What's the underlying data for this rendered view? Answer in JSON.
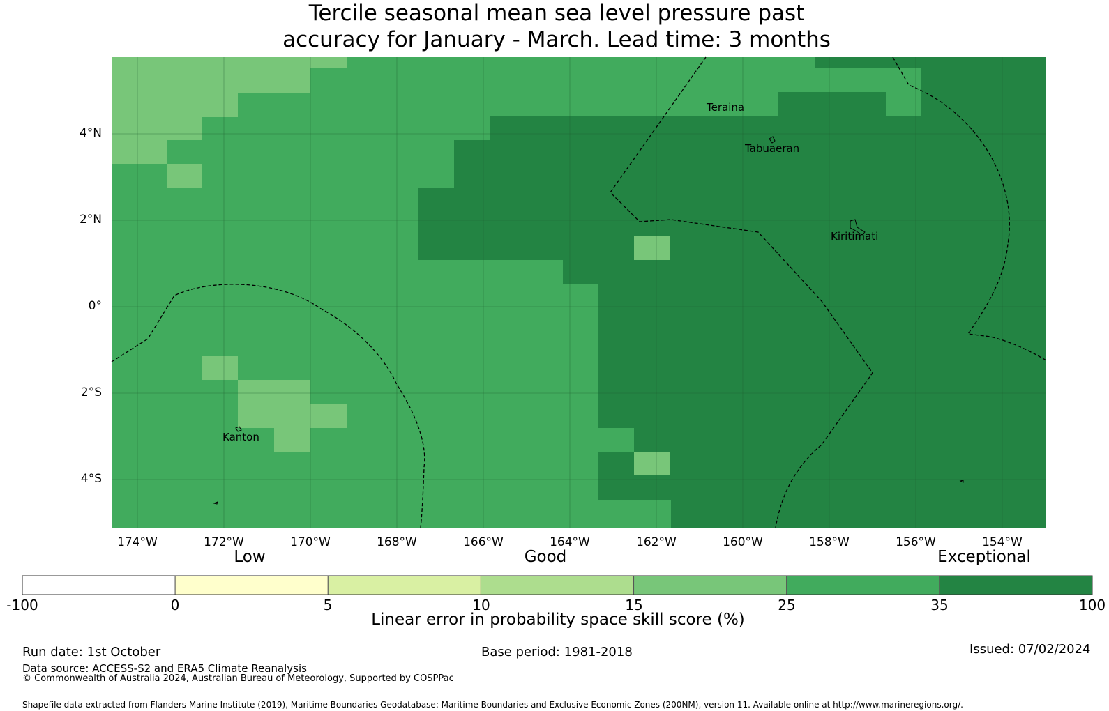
{
  "title": {
    "line1": "Tercile seasonal mean sea level pressure past",
    "line2": "accuracy for January - March. Lead time: 3 months"
  },
  "map": {
    "latitude_labels": [
      "4°N",
      "2°N",
      "0°",
      "2°S",
      "4°S"
    ],
    "longitude_labels": [
      "174°W",
      "172°W",
      "170°W",
      "168°W",
      "166°W",
      "164°W",
      "162°W",
      "160°W",
      "158°W",
      "156°W",
      "154°W"
    ],
    "place_names": {
      "teraina": "Teraina",
      "tabuaeran": "Tabuaeran",
      "kiritimati": "Kiritimati",
      "kanton": "Kanton"
    }
  },
  "colorbar": {
    "categories": {
      "low": "Low",
      "good": "Good",
      "exceptional": "Exceptional"
    },
    "ticks": [
      "-100",
      "0",
      "5",
      "10",
      "15",
      "25",
      "35",
      "100"
    ],
    "colors": [
      "#ffffff",
      "#ffffcc",
      "#d9f0a3",
      "#addd8e",
      "#78c679",
      "#41ab5d",
      "#238443"
    ],
    "label": "Linear error in probability space skill score (%)"
  },
  "footer": {
    "run_date": "Run date: 1st October",
    "base_period": "Base period: 1981-2018",
    "issued": "Issued: 07/02/2024",
    "data_source": "Data source: ACCESS-S2 and ERA5 Climate Reanalysis",
    "copyright": "© Commonwealth of Australia 2024, Australian Bureau of Meteorology, Supported by COSPPac",
    "shapefile": "Shapefile data extracted from Flanders Marine Institute (2019), Maritime Boundaries Geodatabase: Maritime Boundaries and Exclusive Economic Zones (200NM), version 11. Available online at http://www.marineregions.org/."
  }
}
